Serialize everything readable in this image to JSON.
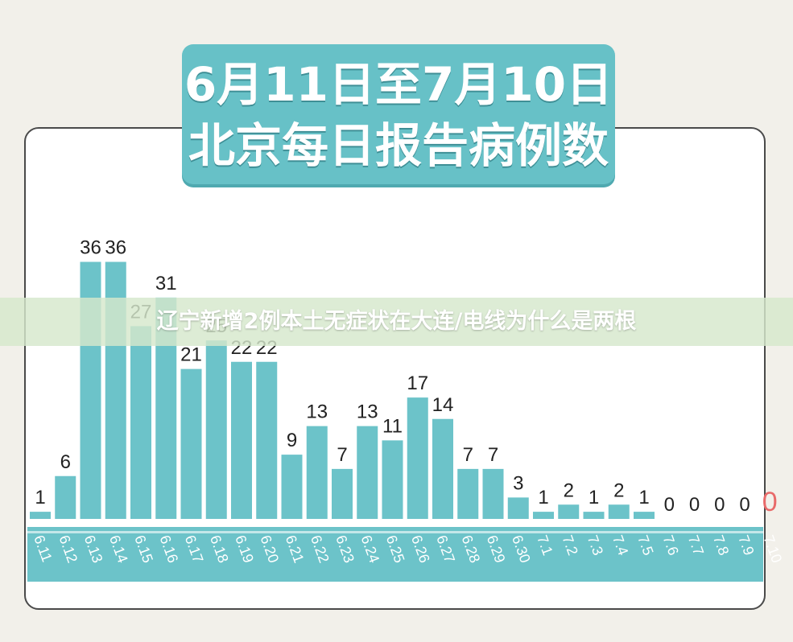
{
  "title": {
    "line1": "6月11日至7月10日",
    "line2": "北京每日报告病例数"
  },
  "overlay": {
    "text": "辽宁新增2例本土无症状在大连/电线为什么是两根"
  },
  "colors": {
    "bar": "#6cc3c9",
    "bar_highlight": "#e86a6a",
    "axis_band": "#6cc3c9",
    "title_bg": "#67c1c7"
  },
  "chart_data": {
    "type": "bar",
    "title": "6月11日至7月10日 北京每日报告病例数",
    "xlabel": "",
    "ylabel": "",
    "ylim": [
      0,
      40
    ],
    "grid": false,
    "categories": [
      "6.11",
      "6.12",
      "6.13",
      "6.14",
      "6.15",
      "6.16",
      "6.17",
      "6.18",
      "6.19",
      "6.20",
      "6.21",
      "6.22",
      "6.23",
      "6.24",
      "6.25",
      "6.26",
      "6.27",
      "6.28",
      "6.29",
      "6.30",
      "7.1",
      "7.2",
      "7.3",
      "7.4",
      "7.5",
      "7.6",
      "7.7",
      "7.8",
      "7.9",
      "7.10"
    ],
    "values": [
      1,
      6,
      36,
      36,
      27,
      31,
      21,
      25,
      22,
      22,
      9,
      13,
      7,
      13,
      11,
      17,
      14,
      7,
      7,
      3,
      1,
      2,
      1,
      2,
      1,
      0,
      0,
      0,
      0,
      0
    ],
    "highlight_last": true
  }
}
